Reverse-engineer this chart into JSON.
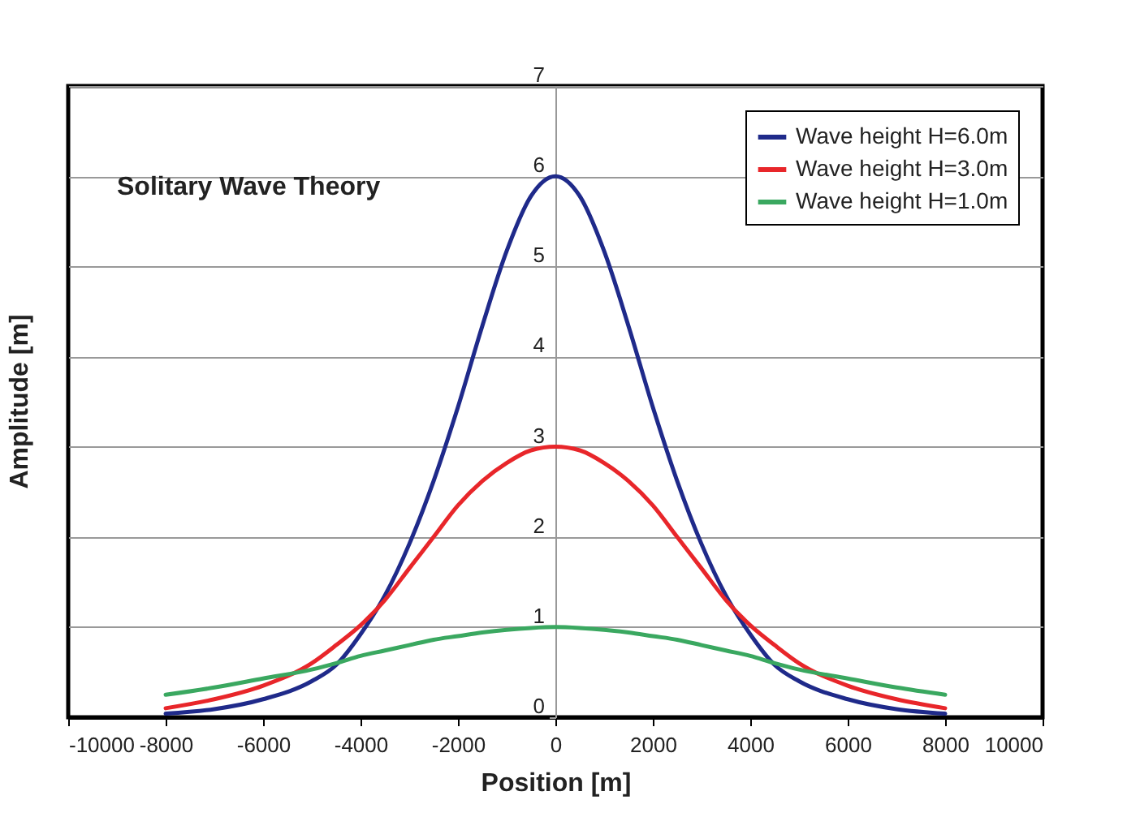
{
  "chart_data": {
    "type": "line",
    "title": "Solitary Wave Theory",
    "xlabel": "Position [m]",
    "ylabel": "Amplitude [m]",
    "x": [
      -8000,
      -7000,
      -6000,
      -5000,
      -4500,
      -4000,
      -3500,
      -3000,
      -2500,
      -2000,
      -1500,
      -1000,
      -500,
      0,
      500,
      1000,
      1500,
      2000,
      2500,
      3000,
      3500,
      4000,
      4500,
      5000,
      6000,
      7000,
      8000
    ],
    "series": [
      {
        "name": "Wave height H=6.0m",
        "color": "#1f2a8a",
        "values": [
          0.04,
          0.09,
          0.2,
          0.4,
          0.58,
          0.92,
          1.35,
          1.92,
          2.62,
          3.44,
          4.34,
          5.17,
          5.78,
          6.0,
          5.78,
          5.17,
          4.34,
          3.44,
          2.62,
          1.92,
          1.35,
          0.92,
          0.58,
          0.4,
          0.2,
          0.09,
          0.04
        ]
      },
      {
        "name": "Wave height H=3.0m",
        "color": "#e8262a",
        "values": [
          0.1,
          0.2,
          0.35,
          0.6,
          0.8,
          1.02,
          1.3,
          1.65,
          2.0,
          2.35,
          2.62,
          2.82,
          2.96,
          3.0,
          2.96,
          2.82,
          2.62,
          2.35,
          2.0,
          1.65,
          1.3,
          1.02,
          0.8,
          0.6,
          0.35,
          0.2,
          0.1
        ]
      },
      {
        "name": "Wave height H=1.0m",
        "color": "#3aa860",
        "values": [
          0.25,
          0.33,
          0.43,
          0.53,
          0.6,
          0.68,
          0.74,
          0.8,
          0.86,
          0.9,
          0.94,
          0.97,
          0.99,
          1.0,
          0.99,
          0.97,
          0.94,
          0.9,
          0.86,
          0.8,
          0.74,
          0.68,
          0.6,
          0.53,
          0.43,
          0.33,
          0.25
        ]
      }
    ],
    "xlim": [
      -10000,
      10000
    ],
    "xticks": [
      -10000,
      -8000,
      -6000,
      -4000,
      -2000,
      0,
      2000,
      4000,
      6000,
      8000,
      10000
    ],
    "ylim": [
      0,
      7
    ],
    "yticks": [
      0,
      1,
      2,
      3,
      4,
      5,
      6,
      7
    ],
    "grid": "y",
    "legend": "top right",
    "marker": "none",
    "line_style": "solid"
  }
}
